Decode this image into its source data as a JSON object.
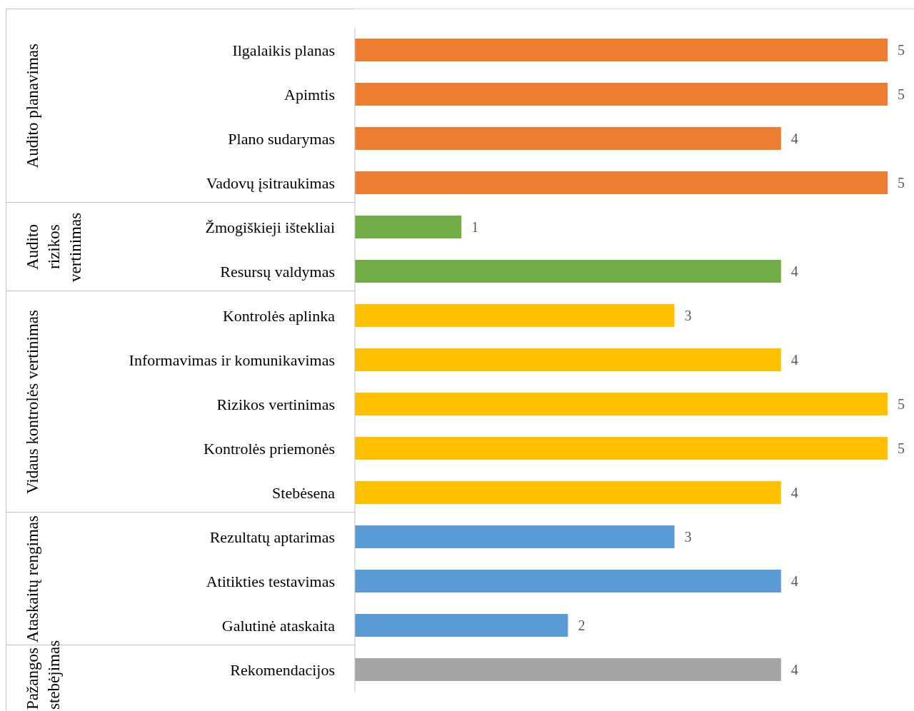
{
  "chart_data": {
    "type": "bar",
    "orientation": "horizontal",
    "data_labels": true,
    "categories": [
      "Ilgalaikis planas",
      "Apimtis",
      "Plano sudarymas",
      "Vadovų įsitraukimas",
      "Žmogiškieji ištekliai",
      "Resursų valdymas",
      "Kontrolės aplinka",
      "Informavimas ir komunikavimas",
      "Rizikos vertinimas",
      "Kontrolės priemonės",
      "Stebėsena",
      "Rezultatų aptarimas",
      "Atitikties testavimas",
      "Galutinė ataskaita",
      "Rekomendacijos"
    ],
    "annotations": [
      "Audito planavimas",
      "Audito rizikos vertinimas",
      "Vidaus kontrolės vertinimas",
      "Ataskaitų rengimas",
      "Pažangos stebėjimas"
    ],
    "series": [
      {
        "color": "#ed7d31",
        "values": [
          5,
          5,
          4,
          5,
          null,
          null,
          null,
          null,
          null,
          null,
          null,
          null,
          null,
          null,
          null
        ]
      },
      {
        "color": "#70ad47",
        "values": [
          null,
          null,
          null,
          null,
          1,
          4,
          null,
          null,
          null,
          null,
          null,
          null,
          null,
          null,
          null
        ]
      },
      {
        "color": "#ffc000",
        "values": [
          null,
          null,
          null,
          null,
          null,
          null,
          3,
          4,
          5,
          5,
          4,
          null,
          null,
          null,
          null
        ]
      },
      {
        "color": "#5b9bd5",
        "values": [
          null,
          null,
          null,
          null,
          null,
          null,
          null,
          null,
          null,
          null,
          null,
          3,
          4,
          2,
          null
        ]
      },
      {
        "color": "#a5a5a5",
        "values": [
          null,
          null,
          null,
          null,
          null,
          null,
          null,
          null,
          null,
          null,
          null,
          null,
          null,
          null,
          4
        ]
      }
    ]
  }
}
